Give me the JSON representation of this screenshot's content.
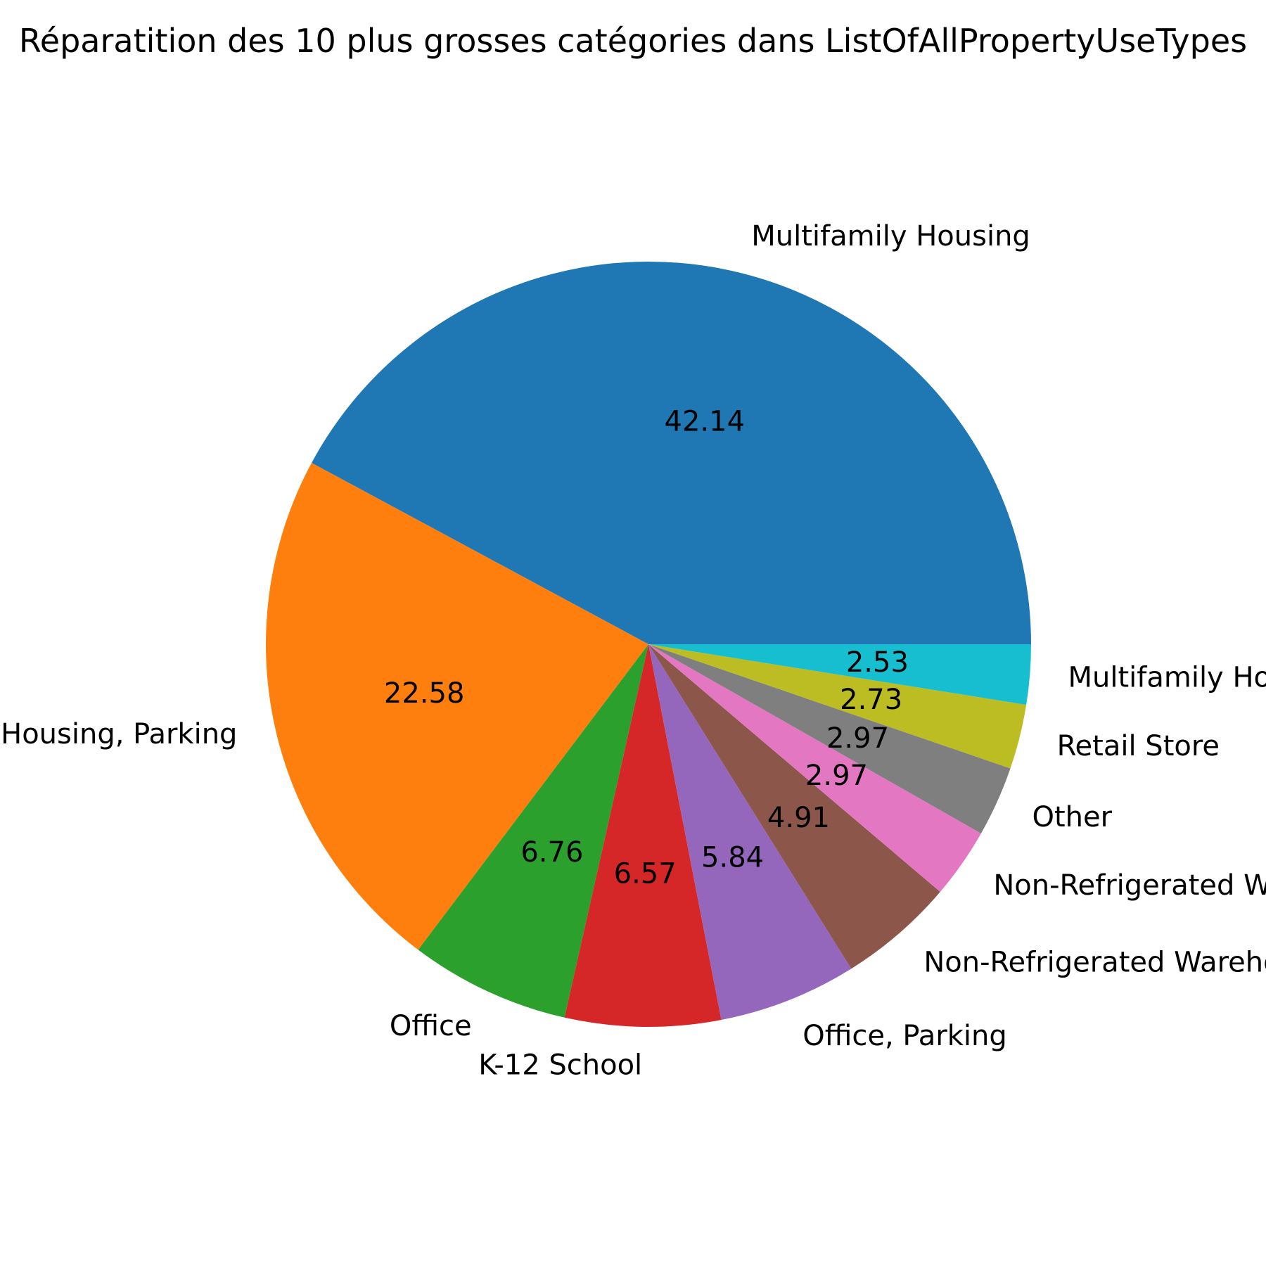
{
  "chart_data": {
    "type": "pie",
    "title": "Réparatition des 10 plus grosses catégories dans ListOfAllPropertyUseTypes",
    "categories": [
      "Multifamily Housing",
      "Multifamily Housing, Parking",
      "Office",
      "K-12 School",
      "Office, Parking",
      "Non-Refrigerated Warehouse",
      "Non-Refrigerated Warehouse, Office",
      "Other",
      "Retail Store",
      "Multifamily Housing, Retail Store"
    ],
    "values": [
      42.14,
      22.58,
      6.76,
      6.57,
      5.84,
      4.91,
      2.97,
      2.97,
      2.73,
      2.53
    ],
    "value_labels": [
      "42.14",
      "22.58",
      "6.76",
      "6.57",
      "5.84",
      "4.91",
      "2.97",
      "2.97",
      "2.73",
      "2.53"
    ],
    "colors": [
      "#1f77b4",
      "#ff7f0e",
      "#2ca02c",
      "#d62728",
      "#9467bd",
      "#8c564b",
      "#e377c2",
      "#7f7f7f",
      "#bcbd22",
      "#17becf"
    ],
    "start_angle_deg": 0,
    "direction": "counterclockwise",
    "legend": "none"
  }
}
